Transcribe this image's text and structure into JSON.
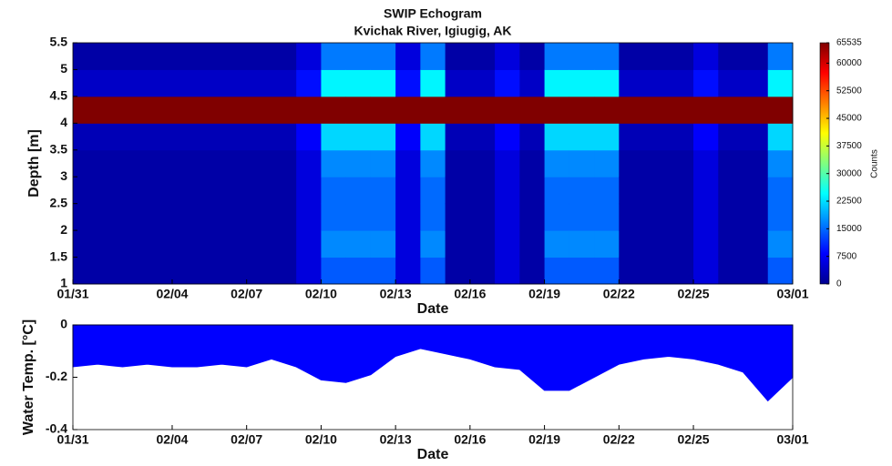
{
  "chart_data": [
    {
      "type": "heatmap",
      "title": "SWIP Echogram",
      "subtitle": "Kvichak River, Igiugig, AK",
      "x_label": "Date",
      "y_label": "Depth [m]",
      "colorbar_label": "Counts",
      "x": [
        "01/31",
        "02/01",
        "02/02",
        "02/03",
        "02/04",
        "02/05",
        "02/06",
        "02/07",
        "02/08",
        "02/09",
        "02/10",
        "02/11",
        "02/12",
        "02/13",
        "02/14",
        "02/15",
        "02/16",
        "02/17",
        "02/18",
        "02/19",
        "02/20",
        "02/21",
        "02/22",
        "02/23",
        "02/24",
        "02/25",
        "02/26",
        "02/27",
        "02/28",
        "03/01"
      ],
      "ybins": [
        1,
        1.5,
        2,
        2.5,
        3,
        3.5,
        4,
        4.5,
        5,
        5.5
      ],
      "z": [
        [
          2500,
          2500,
          2500,
          2500,
          2500,
          3500,
          65535,
          4500,
          2500
        ],
        [
          2500,
          2500,
          2500,
          2500,
          2500,
          3500,
          65535,
          4500,
          2500
        ],
        [
          2500,
          2500,
          2500,
          2500,
          2500,
          3500,
          65535,
          4500,
          2500
        ],
        [
          2500,
          2500,
          2500,
          2500,
          2500,
          3500,
          65535,
          4500,
          2500
        ],
        [
          2500,
          2500,
          2500,
          2500,
          2500,
          3500,
          65535,
          4500,
          2500
        ],
        [
          2500,
          2500,
          2500,
          2500,
          2500,
          3500,
          65535,
          4500,
          2500
        ],
        [
          2500,
          2500,
          2500,
          2500,
          2500,
          3500,
          65535,
          4500,
          2500
        ],
        [
          2500,
          2500,
          2500,
          2500,
          2500,
          3500,
          65535,
          4500,
          2500
        ],
        [
          2500,
          2500,
          2500,
          2500,
          2500,
          3500,
          65535,
          4500,
          2500
        ],
        [
          6000,
          6000,
          6000,
          6000,
          6000,
          8000,
          65535,
          9000,
          6000
        ],
        [
          14000,
          17000,
          15000,
          15000,
          17000,
          22000,
          65535,
          24000,
          16000
        ],
        [
          14000,
          17000,
          15000,
          15000,
          17000,
          22000,
          65535,
          24000,
          16000
        ],
        [
          14000,
          17000,
          15000,
          15000,
          17000,
          22000,
          65535,
          24000,
          16000
        ],
        [
          6000,
          6000,
          6000,
          6000,
          6000,
          8000,
          65535,
          9000,
          6000
        ],
        [
          14000,
          17000,
          15000,
          15000,
          17000,
          22000,
          65535,
          24000,
          16000
        ],
        [
          2500,
          2500,
          2500,
          2500,
          2500,
          3500,
          65535,
          4500,
          2500
        ],
        [
          2500,
          2500,
          2500,
          2500,
          2500,
          3500,
          65535,
          4500,
          2500
        ],
        [
          6000,
          6000,
          6000,
          6000,
          6000,
          8000,
          65535,
          9000,
          6000
        ],
        [
          2500,
          2500,
          2500,
          2500,
          2500,
          3500,
          65535,
          4500,
          2500
        ],
        [
          14000,
          17000,
          15000,
          15000,
          17000,
          22000,
          65535,
          24000,
          16000
        ],
        [
          14000,
          17000,
          15000,
          15000,
          17000,
          22000,
          65535,
          24000,
          16000
        ],
        [
          14000,
          17000,
          15000,
          15000,
          17000,
          22000,
          65535,
          24000,
          16000
        ],
        [
          2500,
          2500,
          2500,
          2500,
          2500,
          3500,
          65535,
          4500,
          2500
        ],
        [
          2500,
          2500,
          2500,
          2500,
          2500,
          3500,
          65535,
          4500,
          2500
        ],
        [
          2500,
          2500,
          2500,
          2500,
          2500,
          3500,
          65535,
          4500,
          2500
        ],
        [
          6000,
          6000,
          6000,
          6000,
          6000,
          8000,
          65535,
          9000,
          6000
        ],
        [
          2500,
          2500,
          2500,
          2500,
          2500,
          3500,
          65535,
          4500,
          2500
        ],
        [
          2500,
          2500,
          2500,
          2500,
          2500,
          3500,
          65535,
          4500,
          2500
        ],
        [
          14000,
          17000,
          15000,
          15000,
          17000,
          22000,
          65535,
          24000,
          16000
        ]
      ],
      "xlim": [
        "01/31",
        "03/01"
      ],
      "xticks": [
        "01/31",
        "02/04",
        "02/07",
        "02/10",
        "02/13",
        "02/16",
        "02/19",
        "02/22",
        "02/25",
        "03/01"
      ],
      "ylim": [
        1,
        5.5
      ],
      "yticks": [
        1,
        1.5,
        2,
        2.5,
        3,
        3.5,
        4,
        4.5,
        5,
        5.5
      ],
      "zlim": [
        0,
        65535
      ],
      "zticks": [
        0,
        7500,
        15000,
        22500,
        30000,
        37500,
        45000,
        52500,
        60000,
        65535
      ],
      "colormap": "jet"
    },
    {
      "type": "area",
      "x_label": "Date",
      "y_label": "Water Temp. [°C]",
      "color": "#0000ff",
      "x": [
        "01/31",
        "02/01",
        "02/02",
        "02/03",
        "02/04",
        "02/05",
        "02/06",
        "02/07",
        "02/08",
        "02/09",
        "02/10",
        "02/11",
        "02/12",
        "02/13",
        "02/14",
        "02/15",
        "02/16",
        "02/17",
        "02/18",
        "02/19",
        "02/20",
        "02/21",
        "02/22",
        "02/23",
        "02/24",
        "02/25",
        "02/26",
        "02/27",
        "02/28",
        "03/01"
      ],
      "values": [
        -0.16,
        -0.15,
        -0.16,
        -0.15,
        -0.16,
        -0.16,
        -0.15,
        -0.16,
        -0.13,
        -0.16,
        -0.21,
        -0.22,
        -0.19,
        -0.12,
        -0.09,
        -0.11,
        -0.13,
        -0.16,
        -0.17,
        -0.25,
        -0.25,
        -0.2,
        -0.15,
        -0.13,
        -0.12,
        -0.13,
        -0.15,
        -0.18,
        -0.29,
        -0.2
      ],
      "xlim": [
        "01/31",
        "03/01"
      ],
      "xticks": [
        "01/31",
        "02/04",
        "02/07",
        "02/10",
        "02/13",
        "02/16",
        "02/19",
        "02/22",
        "02/25",
        "03/01"
      ],
      "ylim": [
        -0.4,
        0
      ],
      "yticks": [
        0,
        -0.2,
        -0.4
      ]
    }
  ]
}
